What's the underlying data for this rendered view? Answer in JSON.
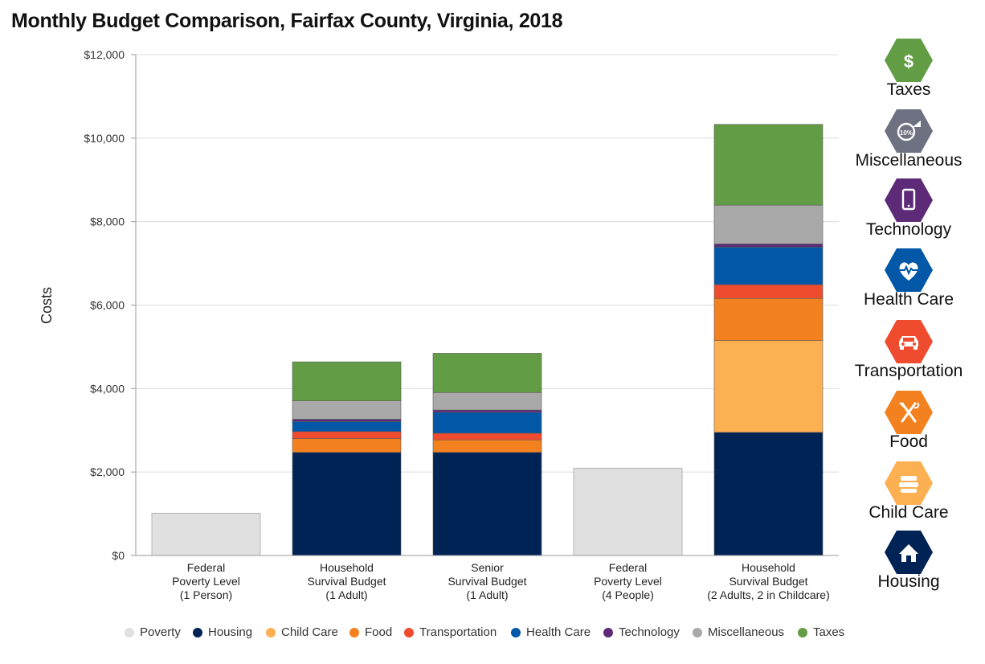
{
  "title": "Monthly Budget Comparison, Fairfax County, Virginia, 2018",
  "colors": {
    "Poverty": "#e0e0e0",
    "Housing": "#002355",
    "Child Care": "#fdb052",
    "Food": "#f38120",
    "Transportation": "#ef4b2f",
    "Health Care": "#0258a6",
    "Technology": "#5d2a78",
    "Miscellaneous": "#a9a9a9",
    "Taxes": "#629c45"
  },
  "chart_data": {
    "type": "bar",
    "stacked": true,
    "title": "Monthly Budget Comparison, Fairfax County, Virginia, 2018",
    "ylabel": "Costs",
    "ylim": [
      0,
      12000
    ],
    "yticks": [
      0,
      2000,
      4000,
      6000,
      8000,
      10000,
      12000
    ],
    "ytick_labels": [
      "$0",
      "$2,000",
      "$4,000",
      "$6,000",
      "$8,000",
      "$10,000",
      "$12,000"
    ],
    "grid": true,
    "legend_position": "bottom",
    "categories": [
      [
        "Federal",
        "Poverty Level",
        "(1 Person)"
      ],
      [
        "Household",
        "Survival Budget",
        "(1 Adult)"
      ],
      [
        "Senior",
        "Survival Budget",
        "(1 Adult)"
      ],
      [
        "Federal",
        "Poverty Level",
        "(4 People)"
      ],
      [
        "Household",
        "Survival Budget",
        "(2 Adults, 2 in Childcare)"
      ]
    ],
    "series": [
      {
        "name": "Poverty",
        "values": [
          1012,
          0,
          0,
          2092,
          0
        ]
      },
      {
        "name": "Housing",
        "values": [
          0,
          2470,
          2470,
          0,
          2950
        ]
      },
      {
        "name": "Child Care",
        "values": [
          0,
          0,
          0,
          0,
          2200
        ]
      },
      {
        "name": "Food",
        "values": [
          0,
          330,
          300,
          0,
          1010
        ]
      },
      {
        "name": "Transportation",
        "values": [
          0,
          170,
          160,
          0,
          330
        ]
      },
      {
        "name": "Health Care",
        "values": [
          0,
          240,
          500,
          0,
          900
        ]
      },
      {
        "name": "Technology",
        "values": [
          0,
          55,
          55,
          0,
          75
        ]
      },
      {
        "name": "Miscellaneous",
        "values": [
          0,
          440,
          420,
          0,
          930
        ]
      },
      {
        "name": "Taxes",
        "values": [
          0,
          935,
          940,
          0,
          1935
        ]
      }
    ]
  },
  "icons": [
    {
      "label": "Taxes",
      "icon": "dollar-icon",
      "color": "#629c45"
    },
    {
      "label": "Miscellaneous",
      "icon": "percent-tag-icon",
      "color": "#6e7182"
    },
    {
      "label": "Technology",
      "icon": "smartphone-icon",
      "color": "#5d2a78"
    },
    {
      "label": "Health Care",
      "icon": "heart-pulse-icon",
      "color": "#0258a6"
    },
    {
      "label": "Transportation",
      "icon": "car-icon",
      "color": "#ef4b2f"
    },
    {
      "label": "Food",
      "icon": "fork-knife-icon",
      "color": "#f38120"
    },
    {
      "label": "Child Care",
      "icon": "blocks-icon",
      "color": "#fdb052"
    },
    {
      "label": "Housing",
      "icon": "house-icon",
      "color": "#002355"
    }
  ],
  "legend": [
    "Poverty",
    "Housing",
    "Child Care",
    "Food",
    "Transportation",
    "Health Care",
    "Technology",
    "Miscellaneous",
    "Taxes"
  ]
}
